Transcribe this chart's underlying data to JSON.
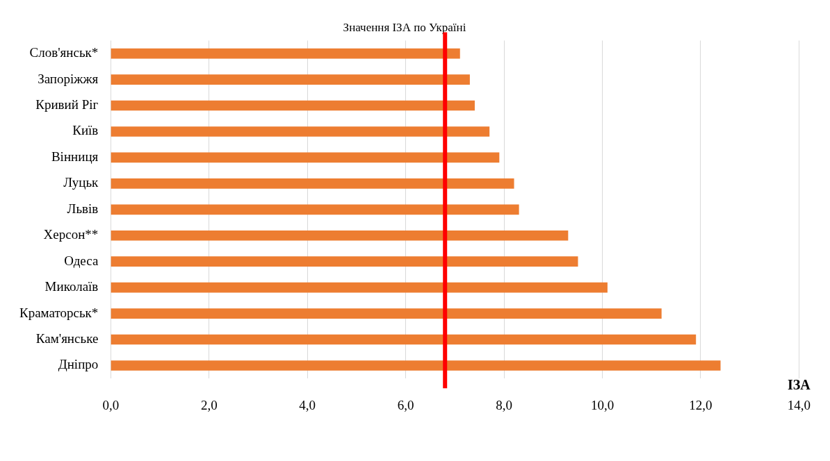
{
  "chart_data": {
    "type": "bar",
    "orientation": "horizontal",
    "title": "Значення ІЗА по Україні",
    "xlabel": "ІЗА",
    "categories": [
      "Слов'янськ*",
      "Запоріжжя",
      "Кривий Ріг",
      "Київ",
      "Вінниця",
      "Луцьк",
      "Львів",
      "Херсон**",
      "Одеса",
      "Миколаїв",
      "Краматорськ*",
      "Кам'янське",
      "Дніпро"
    ],
    "values": [
      7.1,
      7.3,
      7.4,
      7.7,
      7.9,
      8.2,
      8.3,
      9.3,
      9.5,
      10.1,
      11.2,
      11.9,
      12.4
    ],
    "color": "#ed7d31",
    "xlim": [
      0,
      14
    ],
    "xticks": [
      {
        "value": 0,
        "label": "0,0"
      },
      {
        "value": 2,
        "label": "2,0"
      },
      {
        "value": 4,
        "label": "4,0"
      },
      {
        "value": 6,
        "label": "6,0"
      },
      {
        "value": 8,
        "label": "8,0"
      },
      {
        "value": 10,
        "label": "10,0"
      },
      {
        "value": 12,
        "label": "12,0"
      },
      {
        "value": 14,
        "label": "14,0"
      }
    ],
    "grid": "x",
    "ref_lines": [
      {
        "axis": "x",
        "value": 6.8,
        "color": "#ff0000"
      }
    ]
  }
}
